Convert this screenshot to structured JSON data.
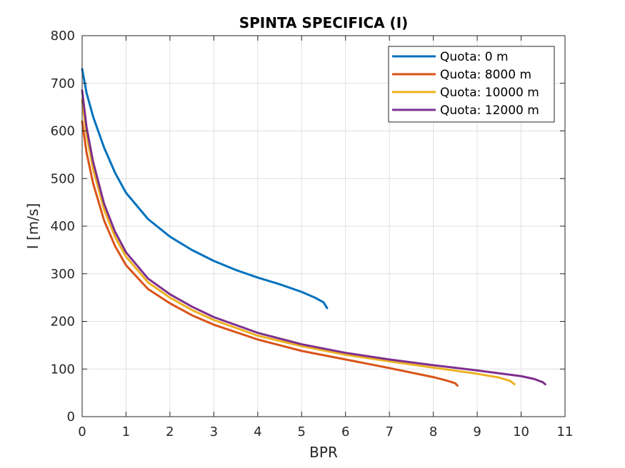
{
  "chart_data": {
    "type": "line",
    "title": "SPINTA SPECIFICA (I)",
    "xlabel": "BPR",
    "ylabel": "I [m/s]",
    "xlim": [
      0,
      11
    ],
    "ylim": [
      0,
      800
    ],
    "xticks": [
      0,
      1,
      2,
      3,
      4,
      5,
      6,
      7,
      8,
      9,
      10,
      11
    ],
    "yticks": [
      0,
      100,
      200,
      300,
      400,
      500,
      600,
      700,
      800
    ],
    "grid": true,
    "legend_position": "top-right",
    "series": [
      {
        "name": "Quota: 0 m",
        "color": "#0072BD",
        "x": [
          0,
          0.1,
          0.25,
          0.5,
          0.75,
          1,
          1.5,
          2,
          2.5,
          3,
          3.5,
          4,
          4.5,
          5,
          5.3,
          5.5,
          5.58
        ],
        "y": [
          730,
          680,
          630,
          565,
          512,
          470,
          415,
          378,
          350,
          327,
          308,
          292,
          278,
          262,
          250,
          240,
          228
        ]
      },
      {
        "name": "Quota: 8000 m",
        "color": "#D95319",
        "x": [
          0,
          0.1,
          0.25,
          0.5,
          0.75,
          1,
          1.5,
          2,
          2.5,
          3,
          4,
          5,
          6,
          7,
          8,
          8.3,
          8.5,
          8.55
        ],
        "y": [
          620,
          555,
          490,
          412,
          358,
          318,
          268,
          238,
          213,
          193,
          162,
          138,
          120,
          102,
          83,
          76,
          70,
          65
        ]
      },
      {
        "name": "Quota: 10000 m",
        "color": "#EDB120",
        "x": [
          0,
          0.1,
          0.25,
          0.5,
          0.75,
          1,
          1.5,
          2,
          2.5,
          3,
          4,
          5,
          6,
          7,
          8,
          9,
          9.5,
          9.75,
          9.85
        ],
        "y": [
          665,
          592,
          520,
          435,
          377,
          336,
          282,
          250,
          224,
          203,
          170,
          148,
          130,
          116,
          103,
          90,
          82,
          75,
          68
        ]
      },
      {
        "name": "Quota: 12000 m",
        "color": "#7E2F8E",
        "x": [
          0,
          0.1,
          0.25,
          0.5,
          0.75,
          1,
          1.5,
          2,
          2.5,
          3,
          4,
          5,
          6,
          7,
          8,
          9,
          10,
          10.3,
          10.5,
          10.55
        ],
        "y": [
          685,
          608,
          535,
          447,
          388,
          345,
          290,
          257,
          231,
          209,
          176,
          152,
          134,
          120,
          108,
          97,
          85,
          79,
          72,
          68
        ]
      }
    ]
  }
}
